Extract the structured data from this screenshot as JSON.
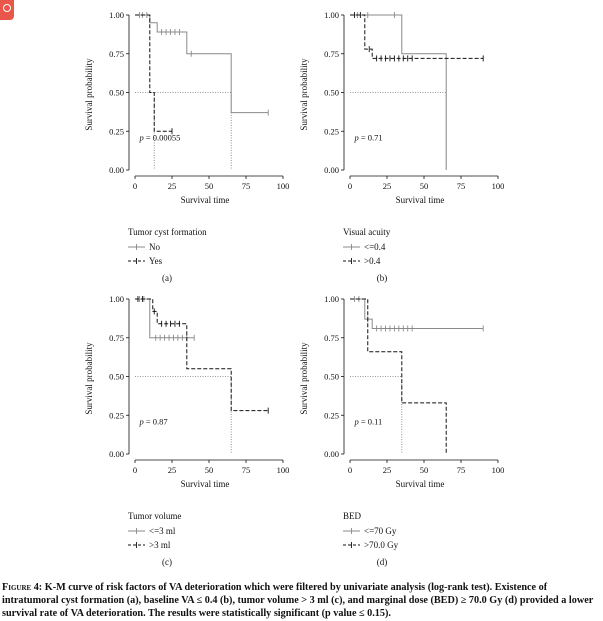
{
  "chart_data": [
    {
      "type": "line",
      "panel_label": "(a)",
      "xlabel": "Survival time",
      "ylabel": "Survival probability",
      "xlim": [
        0,
        100
      ],
      "ylim": [
        0,
        1
      ],
      "xticks": [
        "0",
        "25",
        "50",
        "75",
        "100"
      ],
      "yticks": [
        "0.00",
        "0.25",
        "0.50",
        "0.75",
        "1.00"
      ],
      "pvalue": "p = 0.00055",
      "legend_title": "Tumor cyst formation",
      "legend_placement": "below",
      "series": [
        {
          "name": "No",
          "style": "solid",
          "color": "#8a8a8a",
          "x": [
            0,
            10,
            10,
            15,
            15,
            35,
            35,
            65,
            65,
            90
          ],
          "y": [
            1.0,
            1.0,
            0.95,
            0.95,
            0.89,
            0.89,
            0.75,
            0.75,
            0.37,
            0.37
          ],
          "censor_x": [
            3,
            5,
            8,
            18,
            21,
            24,
            27,
            30,
            38,
            90
          ],
          "censor_y": [
            1.0,
            1.0,
            1.0,
            0.89,
            0.89,
            0.89,
            0.89,
            0.89,
            0.75,
            0.37
          ]
        },
        {
          "name": "Yes",
          "style": "dashed",
          "color": "#111111",
          "x": [
            0,
            10,
            10,
            13,
            13,
            25
          ],
          "y": [
            1.0,
            1.0,
            0.5,
            0.5,
            0.25,
            0.25
          ],
          "censor_x": [
            25
          ],
          "censor_y": [
            0.25
          ]
        }
      ],
      "median_lines": [
        {
          "y": 0.5,
          "x_from": 0,
          "x_to": 65,
          "drop_x": [
            13,
            65
          ],
          "color": "#777777"
        }
      ]
    },
    {
      "type": "line",
      "panel_label": "(b)",
      "xlabel": "Survival time",
      "ylabel": "Survival probability",
      "xlim": [
        0,
        100
      ],
      "ylim": [
        0,
        1
      ],
      "xticks": [
        "0",
        "25",
        "50",
        "75",
        "100"
      ],
      "yticks": [
        "0.00",
        "0.25",
        "0.50",
        "0.75",
        "1.00"
      ],
      "pvalue": "p = 0.71",
      "legend_title": "Visual acuity",
      "legend_placement": "below",
      "series": [
        {
          "name": "<=0.4",
          "style": "solid",
          "color": "#8a8a8a",
          "x": [
            0,
            35,
            35,
            65,
            65
          ],
          "y": [
            1.0,
            1.0,
            0.75,
            0.75,
            0.0
          ],
          "censor_x": [
            5,
            12,
            30
          ],
          "censor_y": [
            1.0,
            1.0,
            1.0
          ]
        },
        {
          "name": ">0.4",
          "style": "dashed",
          "color": "#111111",
          "x": [
            0,
            10,
            10,
            15,
            15,
            90
          ],
          "y": [
            1.0,
            1.0,
            0.78,
            0.78,
            0.72,
            0.72
          ],
          "censor_x": [
            3,
            7,
            13,
            18,
            21,
            24,
            27,
            30,
            33,
            36,
            39,
            42,
            90
          ],
          "censor_y": [
            1.0,
            1.0,
            0.78,
            0.72,
            0.72,
            0.72,
            0.72,
            0.72,
            0.72,
            0.72,
            0.72,
            0.72,
            0.72
          ]
        }
      ],
      "median_lines": [
        {
          "y": 0.5,
          "x_from": 0,
          "x_to": 65,
          "drop_x": [
            65
          ],
          "color": "#777777"
        }
      ]
    },
    {
      "type": "line",
      "panel_label": "(c)",
      "xlabel": "Survival time",
      "ylabel": "Survival probability",
      "xlim": [
        0,
        100
      ],
      "ylim": [
        0,
        1
      ],
      "xticks": [
        "0",
        "25",
        "50",
        "75",
        "100"
      ],
      "yticks": [
        "0.00",
        "0.25",
        "0.50",
        "0.75",
        "1.00"
      ],
      "pvalue": "p = 0.87",
      "legend_title": "Tumor volume",
      "legend_placement": "below",
      "series": [
        {
          "name": "<=3 ml",
          "style": "solid",
          "color": "#8a8a8a",
          "x": [
            0,
            10,
            10,
            40
          ],
          "y": [
            1.0,
            1.0,
            0.75,
            0.75
          ],
          "censor_x": [
            3,
            6,
            14,
            17,
            20,
            23,
            26,
            29,
            32,
            35,
            40
          ],
          "censor_y": [
            1.0,
            1.0,
            0.75,
            0.75,
            0.75,
            0.75,
            0.75,
            0.75,
            0.75,
            0.75,
            0.75
          ]
        },
        {
          "name": ">3 ml",
          "style": "dashed",
          "color": "#111111",
          "x": [
            0,
            12,
            12,
            15,
            15,
            35,
            35,
            65,
            65,
            90
          ],
          "y": [
            1.0,
            1.0,
            0.92,
            0.92,
            0.84,
            0.84,
            0.55,
            0.55,
            0.28,
            0.28
          ],
          "censor_x": [
            2,
            5,
            13,
            18,
            21,
            24,
            27,
            30,
            90
          ],
          "censor_y": [
            1.0,
            1.0,
            0.92,
            0.84,
            0.84,
            0.84,
            0.84,
            0.84,
            0.28
          ]
        }
      ],
      "median_lines": [
        {
          "y": 0.5,
          "x_from": 0,
          "x_to": 65,
          "drop_x": [
            65
          ],
          "color": "#777777"
        }
      ]
    },
    {
      "type": "line",
      "panel_label": "(d)",
      "xlabel": "Survival time",
      "ylabel": "Survival probability",
      "xlim": [
        0,
        100
      ],
      "ylim": [
        0,
        1
      ],
      "xticks": [
        "0",
        "25",
        "50",
        "75",
        "100"
      ],
      "yticks": [
        "0.00",
        "0.25",
        "0.50",
        "0.75",
        "1.00"
      ],
      "pvalue": "p = 0.11",
      "legend_title": "BED",
      "legend_placement": "below",
      "series": [
        {
          "name": "<=70 Gy",
          "style": "solid",
          "color": "#8a8a8a",
          "x": [
            0,
            10,
            10,
            15,
            15,
            90
          ],
          "y": [
            1.0,
            1.0,
            0.87,
            0.87,
            0.81,
            0.81
          ],
          "censor_x": [
            3,
            6,
            12,
            18,
            21,
            24,
            27,
            30,
            33,
            36,
            39,
            42,
            90
          ],
          "censor_y": [
            1.0,
            1.0,
            0.87,
            0.81,
            0.81,
            0.81,
            0.81,
            0.81,
            0.81,
            0.81,
            0.81,
            0.81,
            0.81
          ]
        },
        {
          "name": ">70.0 Gy",
          "style": "dashed",
          "color": "#111111",
          "x": [
            0,
            12,
            12,
            35,
            35,
            65,
            65
          ],
          "y": [
            1.0,
            1.0,
            0.66,
            0.66,
            0.33,
            0.33,
            0.0
          ],
          "censor_x": [],
          "censor_y": []
        }
      ],
      "median_lines": [
        {
          "y": 0.5,
          "x_from": 0,
          "x_to": 35,
          "drop_x": [
            35
          ],
          "color": "#777777"
        }
      ]
    }
  ],
  "caption": {
    "label": "Figure 4:",
    "text": "K-M curve of risk factors of VA deterioration which were filtered by univariate analysis (log-rank test). Existence of intratumoral cyst formation (a), baseline VA ≤ 0.4 (b), tumor volume > 3 ml (c), and marginal dose (BED) ≥ 70.0 Gy (d) provided a lower survival rate of VA deterioration. The results were statistically significant (p value ≤ 0.15)."
  }
}
